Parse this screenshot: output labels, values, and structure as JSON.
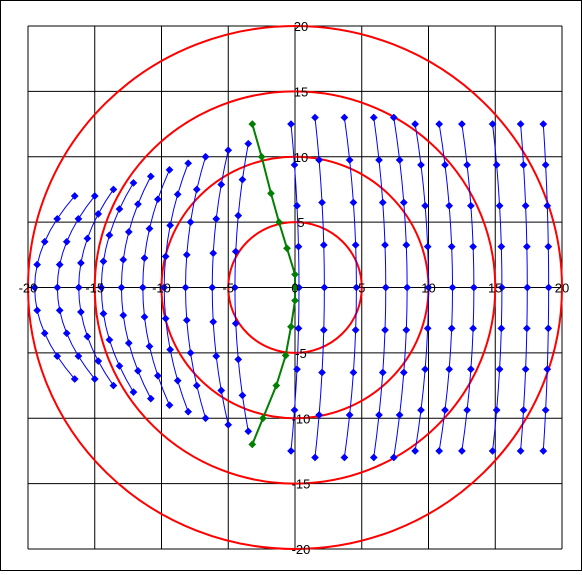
{
  "chart_data": {
    "type": "scatter",
    "title": "",
    "xlabel": "",
    "ylabel": "",
    "xlim": [
      -20,
      20
    ],
    "ylim": [
      -20,
      20
    ],
    "grid": true,
    "x_tick_labels": [
      "-20",
      "-15",
      "-10",
      "-5",
      "0",
      "5",
      "10",
      "15",
      "20"
    ],
    "y_tick_labels": [
      "20",
      "15",
      "10",
      "5",
      "0",
      "-5",
      "-10",
      "-15",
      "-20"
    ],
    "circles": {
      "color": "#ff0000",
      "radii": [
        5,
        10,
        15,
        20
      ],
      "center": [
        0,
        0
      ]
    },
    "field_lines": {
      "color": "#0000ff",
      "marker": "diamond",
      "lines": [
        {
          "x_axis": -19.5,
          "half_height": 7,
          "bow": 3.0
        },
        {
          "x_axis": -17.8,
          "half_height": 7,
          "bow": 2.8
        },
        {
          "x_axis": -16.2,
          "half_height": 7.5,
          "bow": 2.6
        },
        {
          "x_axis": -14.5,
          "half_height": 8,
          "bow": 2.4
        },
        {
          "x_axis": -13.0,
          "half_height": 8.5,
          "bow": 2.2
        },
        {
          "x_axis": -11.4,
          "half_height": 9,
          "bow": 2.0
        },
        {
          "x_axis": -9.8,
          "half_height": 9.5,
          "bow": 1.8
        },
        {
          "x_axis": -8.2,
          "half_height": 10,
          "bow": 1.5
        },
        {
          "x_axis": -6.2,
          "half_height": 10.5,
          "bow": 1.2
        },
        {
          "x_axis": -4.5,
          "half_height": 11,
          "bow": 1.0
        },
        {
          "x_axis": 0.3,
          "half_height": 12.5,
          "bow": -0.6
        },
        {
          "x_axis": 2.2,
          "half_height": 13,
          "bow": -0.7
        },
        {
          "x_axis": 4.6,
          "half_height": 13,
          "bow": -0.9
        },
        {
          "x_axis": 6.8,
          "half_height": 13,
          "bow": -0.9
        },
        {
          "x_axis": 8.4,
          "half_height": 13,
          "bow": -1.0
        },
        {
          "x_axis": 10.0,
          "half_height": 12.5,
          "bow": -1.0
        },
        {
          "x_axis": 11.8,
          "half_height": 12.5,
          "bow": -1.0
        },
        {
          "x_axis": 13.4,
          "half_height": 12.5,
          "bow": -0.9
        },
        {
          "x_axis": 15.5,
          "half_height": 12.5,
          "bow": -0.7
        },
        {
          "x_axis": 17.4,
          "half_height": 12.5,
          "bow": -0.5
        },
        {
          "x_axis": 19.0,
          "half_height": 12.5,
          "bow": -0.4
        }
      ]
    },
    "central_line": {
      "color": "#008000",
      "marker": "diamond",
      "points": [
        [
          -3.2,
          12.5
        ],
        [
          -2.5,
          10
        ],
        [
          -1.8,
          7.2
        ],
        [
          -1.2,
          5
        ],
        [
          -0.6,
          3
        ],
        [
          0,
          1
        ],
        [
          0,
          0
        ],
        [
          0,
          -1
        ],
        [
          -0.3,
          -3
        ],
        [
          -0.7,
          -5.2
        ],
        [
          -1.4,
          -7.5
        ],
        [
          -2.4,
          -10
        ],
        [
          -3.2,
          -12
        ]
      ]
    }
  }
}
